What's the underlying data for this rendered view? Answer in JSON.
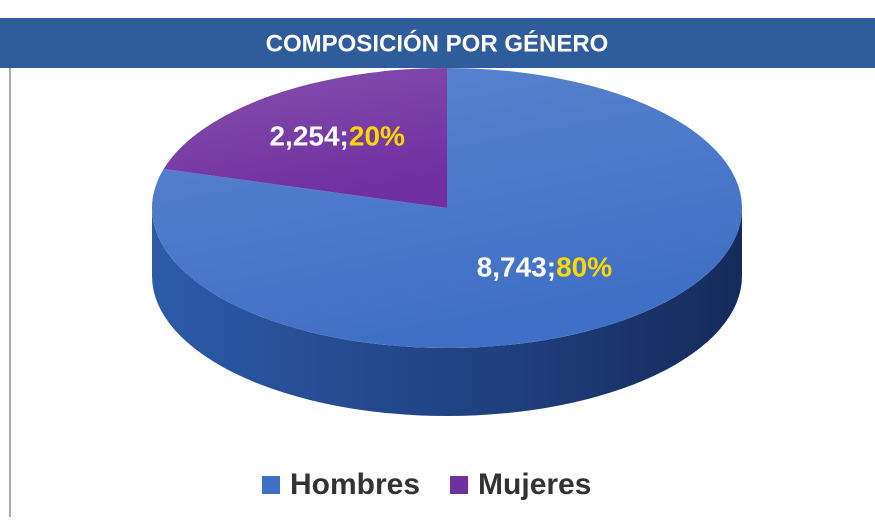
{
  "chart_data": {
    "type": "pie",
    "title": "COMPOSICIÓN POR GÉNERO",
    "categories": [
      "Hombres",
      "Mujeres"
    ],
    "values": [
      8743,
      2254
    ],
    "value_labels": [
      "8,743",
      "2,254"
    ],
    "label_separator": ";",
    "percents": [
      80,
      20
    ],
    "percent_labels": [
      "80%",
      "20%"
    ],
    "colors": [
      "#3f6fc6",
      "#7030a0"
    ],
    "legend": "bottom"
  }
}
